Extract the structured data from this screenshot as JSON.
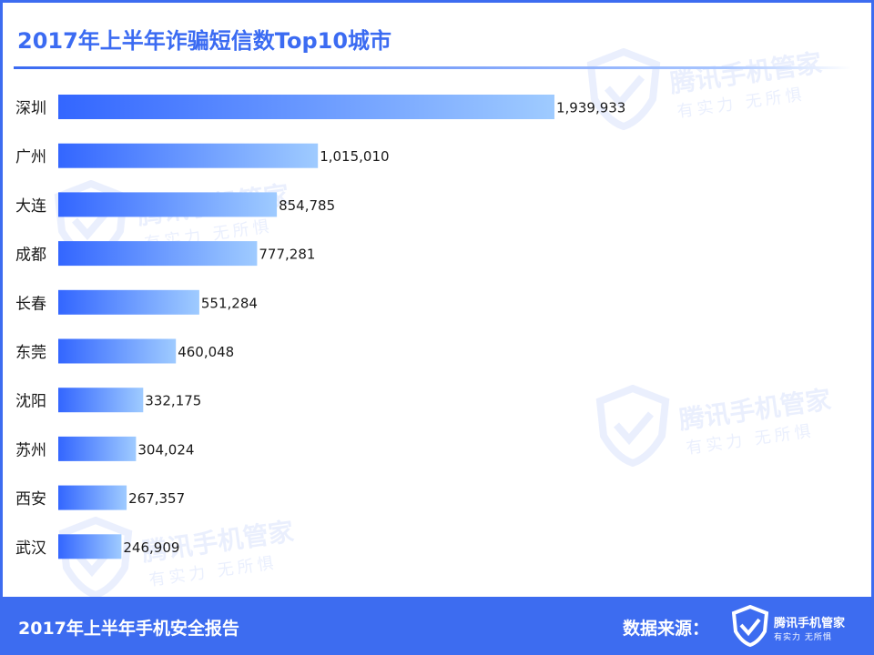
{
  "header": {
    "title": "2017年上半年诈骗短信数Top10城市"
  },
  "watermark": {
    "brand": "腾讯手机管家",
    "slogan": "有实力 无所惧",
    "icon": "shield-check-icon"
  },
  "footer": {
    "report_title": "2017年上半年手机安全报告",
    "source_label": "数据来源：",
    "brand": "腾讯手机管家",
    "slogan": "有实力 无所惧",
    "logo_icon": "shield-check-icon"
  },
  "colors": {
    "accent": "#3d6cf0",
    "bar_start": "#3366ff",
    "bar_end": "#9fcbff",
    "label": "#1a1a1a"
  },
  "chart_data": {
    "type": "bar",
    "orientation": "horizontal",
    "title": "2017年上半年诈骗短信数Top10城市",
    "categories": [
      "深圳",
      "广州",
      "大连",
      "成都",
      "长春",
      "东莞",
      "沈阳",
      "苏州",
      "西安",
      "武汉"
    ],
    "values": [
      1939933,
      1015010,
      854785,
      777281,
      551284,
      460048,
      332175,
      304024,
      267357,
      246909
    ],
    "value_labels": [
      "1,939,933",
      "1,015,010",
      "854,785",
      "777,281",
      "551,284",
      "460,048",
      "332,175",
      "304,024",
      "267,357",
      "246,909"
    ],
    "xlim": [
      0,
      1939933
    ],
    "grid": false,
    "legend": "none"
  }
}
